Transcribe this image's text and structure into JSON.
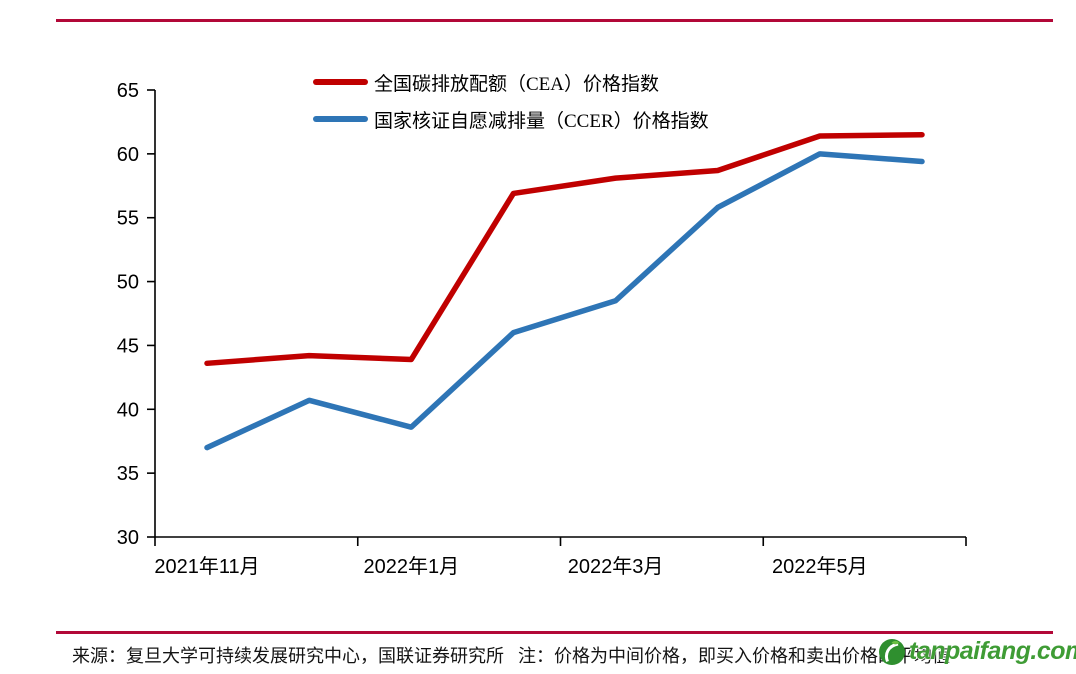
{
  "header": {
    "rule_color": "#b20838"
  },
  "chart_data": {
    "type": "line",
    "title": "",
    "xlabel": "",
    "ylabel": "",
    "x_tick_labels": [
      "2021年11月",
      "2022年1月",
      "2022年3月",
      "2022年5月"
    ],
    "x_tick_label_positions": [
      0,
      2,
      4,
      6
    ],
    "y_tick_labels": [
      "30",
      "35",
      "40",
      "45",
      "50",
      "55",
      "60",
      "65"
    ],
    "ylim": [
      30,
      65
    ],
    "y_tick_step": 5,
    "grid": false,
    "legend_position": "top-center",
    "axis_color": "#000000",
    "series": [
      {
        "name": "全国碳排放配额（CEA）价格指数",
        "color": "#c00000",
        "values": [
          43.6,
          44.2,
          43.9,
          56.9,
          58.1,
          58.7,
          61.4,
          61.5
        ]
      },
      {
        "name": "国家核证自愿减排量（CCER）价格指数",
        "color": "#2e75b6",
        "values": [
          37.0,
          40.7,
          38.6,
          46.0,
          48.5,
          55.8,
          60.0,
          59.4
        ]
      }
    ]
  },
  "footer": {
    "rule_color": "#b20838",
    "source_note": "来源：复旦大学可持续发展研究中心，国联证券研究所",
    "price_note": "注：价格为中间价格，即买入价格和卖出价格的平均值",
    "watermark": "tanpaifang.com",
    "watermark_color": "#3f9c35"
  }
}
